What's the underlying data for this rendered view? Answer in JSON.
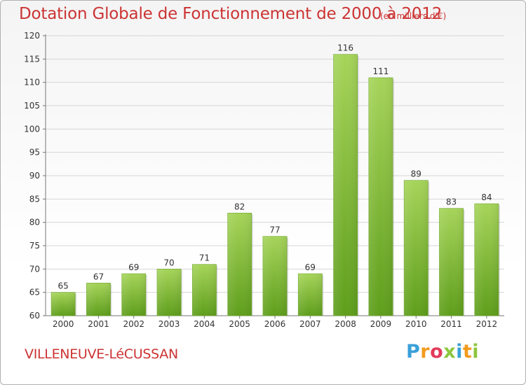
{
  "header": {
    "title": "Dotation Globale de Fonctionnement de 2000 à 2012",
    "subtitle": "(en milliers d'€)"
  },
  "footer": {
    "commune": "VILLENEUVE-LéCUSSAN",
    "logo_text": "Proxiti"
  },
  "colors": {
    "title": "#cc3333",
    "bar_top": "#a6d45a",
    "bar_bottom": "#5e9e1b",
    "grid": "#d6d6d6"
  },
  "chart_data": {
    "type": "bar",
    "title": "Dotation Globale de Fonctionnement de 2000 à 2012",
    "subtitle": "(en milliers d'€)",
    "xlabel": "",
    "ylabel": "",
    "categories": [
      "2000",
      "2001",
      "2002",
      "2003",
      "2004",
      "2005",
      "2006",
      "2007",
      "2008",
      "2009",
      "2010",
      "2011",
      "2012"
    ],
    "values": [
      65,
      67,
      69,
      70,
      71,
      82,
      77,
      69,
      116,
      111,
      89,
      83,
      84
    ],
    "ylim": [
      60,
      120
    ],
    "yticks": [
      60,
      65,
      70,
      75,
      80,
      85,
      90,
      95,
      100,
      105,
      110,
      115,
      120
    ],
    "grid": true,
    "data_labels": true,
    "legend": "none"
  }
}
